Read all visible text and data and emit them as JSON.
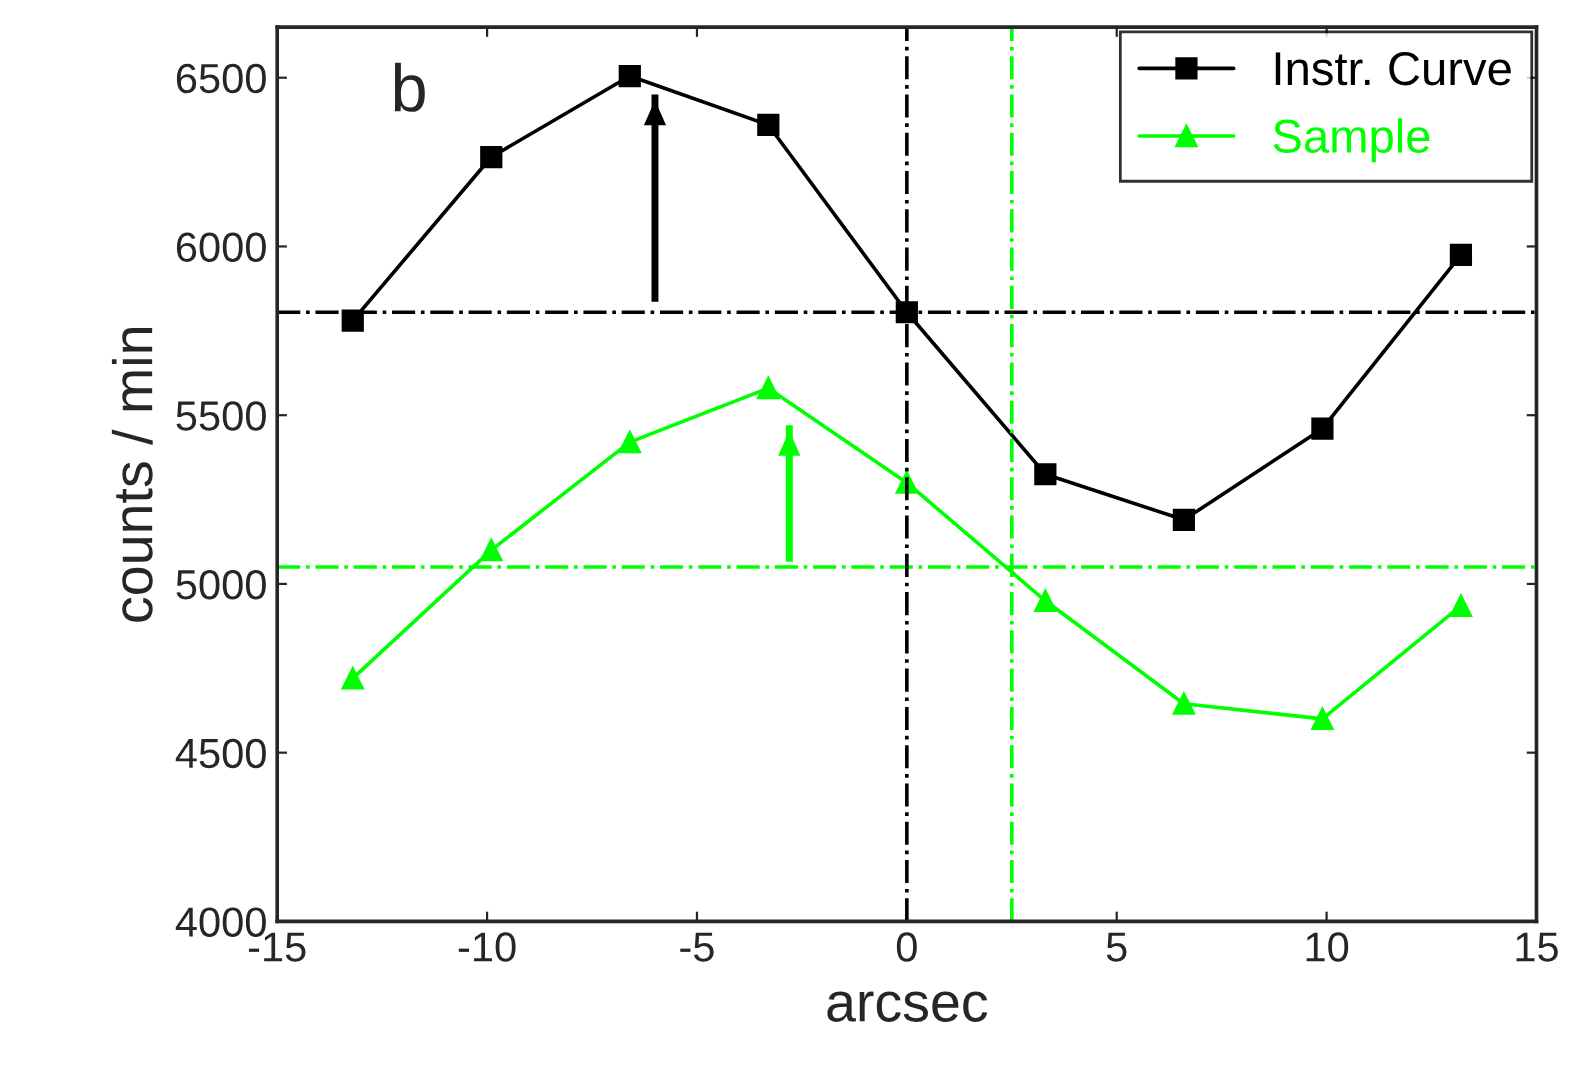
{
  "chart_data": {
    "type": "line",
    "xlabel": "arcsec",
    "ylabel": "counts / min",
    "annotations": [
      "b"
    ],
    "xlim": [
      -15,
      15
    ],
    "xticks": [
      -15,
      -10,
      -5,
      0,
      5,
      10,
      15
    ],
    "ylim": [
      4000,
      6650
    ],
    "yticks": [
      4000,
      4500,
      5000,
      5500,
      6000,
      6500
    ],
    "grid": false,
    "legend": "top right",
    "line_style": "solid",
    "series": [
      {
        "name": "Instr. Curve",
        "color": "#000000",
        "marker": "square",
        "x": [
          -13.2,
          -9.9,
          -6.6,
          -3.3,
          0,
          3.3,
          6.6,
          9.9,
          13.2
        ],
        "values": [
          5780,
          6265,
          6505,
          6360,
          5805,
          5325,
          5190,
          5460,
          5975
        ]
      },
      {
        "name": "Sample",
        "color": "#00ff00",
        "marker": "triangle",
        "x": [
          -13.2,
          -9.9,
          -6.6,
          -3.3,
          0,
          3.3,
          6.6,
          9.9,
          13.2
        ],
        "values": [
          4720,
          5100,
          5420,
          5580,
          5300,
          4950,
          4645,
          4600,
          4935
        ]
      },
      {
        "type": "line",
        "marker": "none",
        "color": "#000000",
        "x": [
          -6,
          -6
        ],
        "values": [
          5836,
          6450
        ]
      },
      {
        "type": "line",
        "marker": "none",
        "color": "#00ff00",
        "x": [
          -2.8,
          -2.8
        ],
        "values": [
          5066,
          5470
        ]
      }
    ],
    "ref_lines": [
      {
        "axis": "y",
        "value": 5805,
        "color": "#000000",
        "line_style": "dashdot"
      },
      {
        "axis": "y",
        "value": 5050,
        "color": "#00ff00",
        "line_style": "dashdot"
      },
      {
        "axis": "x",
        "value": 0,
        "color": "#000000",
        "line_style": "dashdot"
      },
      {
        "axis": "x",
        "value": 2.5,
        "color": "#00ff00",
        "line_style": "dashdot"
      }
    ]
  }
}
